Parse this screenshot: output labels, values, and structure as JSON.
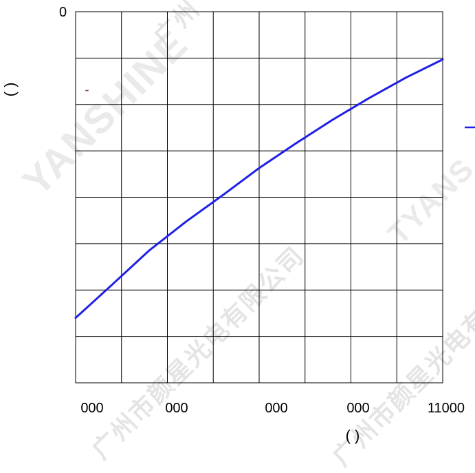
{
  "chart_data": {
    "type": "line",
    "title": "",
    "xlabel": "( )",
    "ylabel": "( )",
    "x_tick_labels": [
      "000",
      "000",
      "000",
      "000",
      "11000"
    ],
    "y_tick_labels": [
      "0"
    ],
    "grid": true,
    "series": [
      {
        "color": "#1f1fe6",
        "x": [
          0,
          1,
          2,
          3,
          4,
          5,
          6,
          7,
          8,
          9,
          10
        ],
        "y": [
          1.4,
          2.12,
          2.85,
          3.47,
          4.04,
          4.63,
          5.16,
          5.67,
          6.14,
          6.58,
          6.97
        ]
      }
    ],
    "xlim": [
      0,
      10
    ],
    "ylim": [
      0,
      8
    ],
    "annotation": "••",
    "legend_marker_color": "#1f1fe6"
  }
}
